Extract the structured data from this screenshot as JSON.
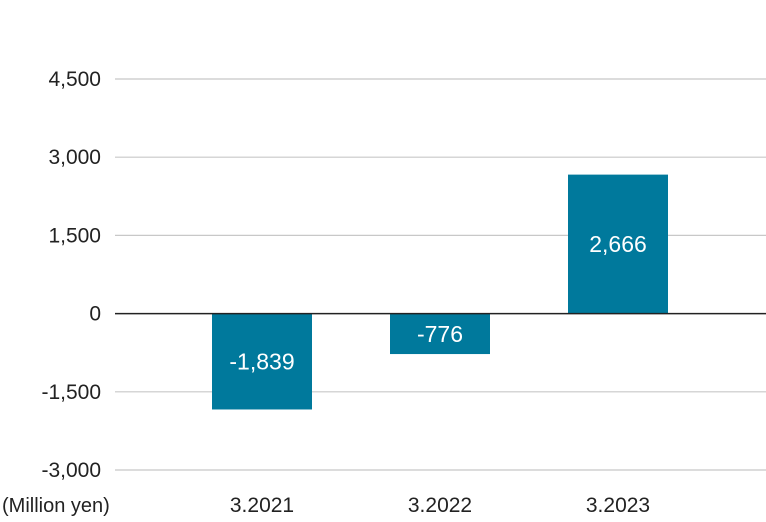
{
  "chart_data": {
    "type": "bar",
    "categories": [
      "3.2021",
      "3.2022",
      "3.2023"
    ],
    "values": [
      -1839,
      -776,
      2666
    ],
    "data_labels": [
      "-1,839",
      "-776",
      "2,666"
    ],
    "unit_label": "(Million yen)",
    "ylim": [
      -3000,
      4500
    ],
    "yticks": [
      4500,
      3000,
      1500,
      0,
      -1500,
      -3000
    ],
    "ytick_labels": [
      "4,500",
      "3,000",
      "1,500",
      "0",
      "-1,500",
      "-3,000"
    ],
    "grid": true,
    "legend": "none",
    "bar_color": "#00799c",
    "grid_color": "#c8c8c8",
    "zero_line_color": "#222222"
  }
}
